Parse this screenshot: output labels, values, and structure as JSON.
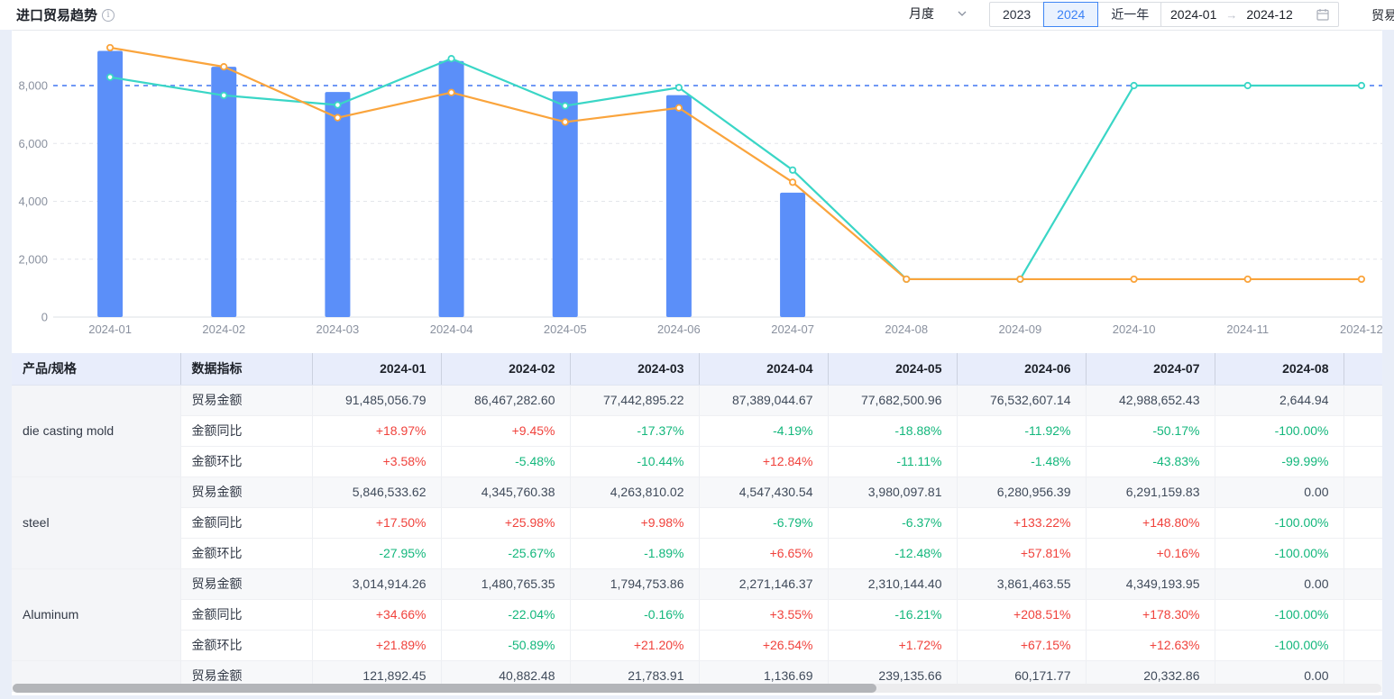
{
  "header": {
    "title": "进口贸易趋势",
    "frequency_select": {
      "value": "月度"
    },
    "range_buttons": [
      {
        "label": "2023",
        "selected": false
      },
      {
        "label": "2024",
        "selected": true
      },
      {
        "label": "近一年",
        "selected": false
      }
    ],
    "date_range": {
      "start": "2024-01",
      "end": "2024-12",
      "arrow": "→"
    },
    "right_clipped_label": "贸易"
  },
  "chart_data": {
    "type": "bar+line",
    "categories": [
      "2024-01",
      "2024-02",
      "2024-03",
      "2024-04",
      "2024-05",
      "2024-06",
      "2024-07",
      "2024-08",
      "2024-09",
      "2024-10",
      "2024-11",
      "2024-12"
    ],
    "yticks": [
      0,
      2000,
      4000,
      6000,
      8000
    ],
    "ylim": [
      0,
      9600
    ],
    "grid": true,
    "refline": {
      "value": 8000,
      "color": "#7098F5"
    },
    "series": [
      {
        "id": "amount-bars",
        "type": "bar",
        "color": "#5B8FF9",
        "values": [
          9200,
          8650,
          7780,
          8850,
          7800,
          7670,
          4300,
          0,
          0,
          0,
          0,
          0
        ]
      },
      {
        "id": "teal-line",
        "type": "line",
        "color": "#3AD6C6",
        "values": [
          8290,
          7660,
          7330,
          8930,
          7300,
          7930,
          5080,
          1310,
          1310,
          8000,
          8000,
          8000
        ]
      },
      {
        "id": "orange-line",
        "type": "line",
        "color": "#FAA43C",
        "values": [
          9310,
          8650,
          6890,
          7760,
          6740,
          7230,
          4660,
          1310,
          1310,
          1310,
          1310,
          1310
        ]
      }
    ]
  },
  "table": {
    "product_header": "产品/规格",
    "metric_header": "数据指标",
    "months": [
      "2024-01",
      "2024-02",
      "2024-03",
      "2024-04",
      "2024-05",
      "2024-06",
      "2024-07",
      "2024-08"
    ],
    "products": [
      {
        "name": "die casting mold",
        "rows": [
          {
            "label": "贸易金额",
            "values": [
              "91,485,056.79",
              "86,467,282.60",
              "77,442,895.22",
              "87,389,044.67",
              "77,682,500.96",
              "76,532,607.14",
              "42,988,652.43",
              "2,644.94"
            ]
          },
          {
            "label": "金额同比",
            "values": [
              "+18.97%",
              "+9.45%",
              "-17.37%",
              "-4.19%",
              "-18.88%",
              "-11.92%",
              "-50.17%",
              "-100.00%"
            ]
          },
          {
            "label": "金额环比",
            "values": [
              "+3.58%",
              "-5.48%",
              "-10.44%",
              "+12.84%",
              "-11.11%",
              "-1.48%",
              "-43.83%",
              "-99.99%"
            ]
          }
        ]
      },
      {
        "name": "steel",
        "rows": [
          {
            "label": "贸易金额",
            "values": [
              "5,846,533.62",
              "4,345,760.38",
              "4,263,810.02",
              "4,547,430.54",
              "3,980,097.81",
              "6,280,956.39",
              "6,291,159.83",
              "0.00"
            ]
          },
          {
            "label": "金额同比",
            "values": [
              "+17.50%",
              "+25.98%",
              "+9.98%",
              "-6.79%",
              "-6.37%",
              "+133.22%",
              "+148.80%",
              "-100.00%"
            ]
          },
          {
            "label": "金额环比",
            "values": [
              "-27.95%",
              "-25.67%",
              "-1.89%",
              "+6.65%",
              "-12.48%",
              "+57.81%",
              "+0.16%",
              "-100.00%"
            ]
          }
        ]
      },
      {
        "name": "Aluminum",
        "rows": [
          {
            "label": "贸易金额",
            "values": [
              "3,014,914.26",
              "1,480,765.35",
              "1,794,753.86",
              "2,271,146.37",
              "2,310,144.40",
              "3,861,463.55",
              "4,349,193.95",
              "0.00"
            ]
          },
          {
            "label": "金额同比",
            "values": [
              "+34.66%",
              "-22.04%",
              "-0.16%",
              "+3.55%",
              "-16.21%",
              "+208.51%",
              "+178.30%",
              "-100.00%"
            ]
          },
          {
            "label": "金额环比",
            "values": [
              "+21.89%",
              "-50.89%",
              "+21.20%",
              "+26.54%",
              "+1.72%",
              "+67.15%",
              "+12.63%",
              "-100.00%"
            ]
          }
        ]
      },
      {
        "name": "",
        "rows": [
          {
            "label": "贸易金额",
            "values": [
              "121,892.45",
              "40,882.48",
              "21,783.91",
              "1,136.69",
              "239,135.66",
              "60,171.77",
              "20,332.86",
              "0.00"
            ]
          }
        ]
      }
    ]
  }
}
